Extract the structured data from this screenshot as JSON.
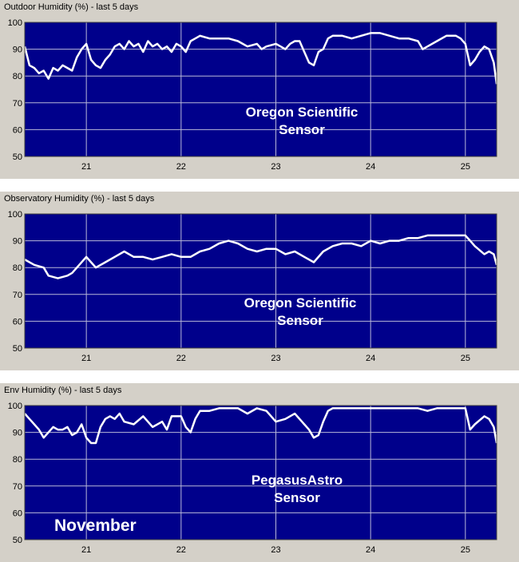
{
  "colors": {
    "panel_bg": "#d4d0c8",
    "plot_bg": "#00008b",
    "line": "#ffffff",
    "grid": "#b8b8d8"
  },
  "month_label": "November",
  "chart_data": [
    {
      "type": "line",
      "title": "Outdoor Humidity (%) - last 5 days",
      "xlabel": "",
      "ylabel": "",
      "xlim": [
        20.35,
        25.33
      ],
      "ylim": [
        50,
        100
      ],
      "x_ticks": [
        "21",
        "22",
        "23",
        "24",
        "25"
      ],
      "y_ticks": [
        "100",
        "90",
        "80",
        "70",
        "60",
        "50"
      ],
      "annotation": [
        "Oregon Scientific",
        "Sensor"
      ],
      "grid": true,
      "series": [
        {
          "x": [
            20.35,
            20.4,
            20.45,
            20.5,
            20.55,
            20.6,
            20.65,
            20.7,
            20.75,
            20.8,
            20.85,
            20.9,
            20.95,
            21.0,
            21.05,
            21.1,
            21.15,
            21.2,
            21.25,
            21.3,
            21.35,
            21.4,
            21.45,
            21.5,
            21.55,
            21.6,
            21.65,
            21.7,
            21.75,
            21.8,
            21.85,
            21.9,
            21.95,
            22.0,
            22.05,
            22.1,
            22.15,
            22.2,
            22.3,
            22.4,
            22.5,
            22.6,
            22.65,
            22.7,
            22.8,
            22.85,
            22.9,
            23.0,
            23.05,
            23.1,
            23.15,
            23.2,
            23.25,
            23.3,
            23.35,
            23.4,
            23.45,
            23.5,
            23.55,
            23.6,
            23.7,
            23.8,
            23.9,
            24.0,
            24.1,
            24.2,
            24.3,
            24.4,
            24.5,
            24.55,
            24.6,
            24.7,
            24.8,
            24.9,
            24.95,
            25.0,
            25.05,
            25.1,
            25.15,
            25.2,
            25.25,
            25.3,
            25.33
          ],
          "y": [
            91,
            84,
            83,
            81,
            82,
            79,
            83,
            82,
            84,
            83,
            82,
            87,
            90,
            92,
            86,
            84,
            83,
            86,
            88,
            91,
            92,
            90,
            93,
            91,
            92,
            89,
            93,
            91,
            92,
            90,
            91,
            89,
            92,
            91,
            89,
            93,
            94,
            95,
            94,
            94,
            94,
            93,
            92,
            91,
            92,
            90,
            91,
            92,
            91,
            90,
            92,
            93,
            93,
            89,
            85,
            84,
            89,
            90,
            94,
            95,
            95,
            94,
            95,
            96,
            96,
            95,
            94,
            94,
            93,
            90,
            91,
            93,
            95,
            95,
            94,
            92,
            84,
            86,
            89,
            91,
            90,
            85,
            77
          ]
        }
      ]
    },
    {
      "type": "line",
      "title": "Observatory Humidity (%) - last 5 days",
      "xlabel": "",
      "ylabel": "",
      "xlim": [
        20.35,
        25.33
      ],
      "ylim": [
        50,
        100
      ],
      "x_ticks": [
        "21",
        "22",
        "23",
        "24",
        "25"
      ],
      "y_ticks": [
        "100",
        "90",
        "80",
        "70",
        "60",
        "50"
      ],
      "annotation": [
        "Oregon Scientific",
        "Sensor"
      ],
      "grid": true,
      "series": [
        {
          "x": [
            20.35,
            20.45,
            20.55,
            20.6,
            20.7,
            20.8,
            20.85,
            20.9,
            21.0,
            21.05,
            21.1,
            21.2,
            21.3,
            21.4,
            21.5,
            21.6,
            21.7,
            21.8,
            21.9,
            22.0,
            22.05,
            22.1,
            22.2,
            22.3,
            22.4,
            22.5,
            22.6,
            22.7,
            22.8,
            22.9,
            23.0,
            23.1,
            23.2,
            23.3,
            23.4,
            23.5,
            23.6,
            23.7,
            23.8,
            23.9,
            24.0,
            24.1,
            24.2,
            24.3,
            24.4,
            24.5,
            24.6,
            24.7,
            24.8,
            24.9,
            25.0,
            25.05,
            25.1,
            25.2,
            25.25,
            25.3,
            25.33
          ],
          "y": [
            83,
            81,
            80,
            77,
            76,
            77,
            78,
            80,
            84,
            82,
            80,
            82,
            84,
            86,
            84,
            84,
            83,
            84,
            85,
            84,
            84,
            84,
            86,
            87,
            89,
            90,
            89,
            87,
            86,
            87,
            87,
            85,
            86,
            84,
            82,
            86,
            88,
            89,
            89,
            88,
            90,
            89,
            90,
            90,
            91,
            91,
            92,
            92,
            92,
            92,
            92,
            90,
            88,
            85,
            86,
            85,
            81
          ]
        }
      ]
    },
    {
      "type": "line",
      "title": "Env Humidity (%) - last 5 days",
      "xlabel": "",
      "ylabel": "",
      "xlim": [
        20.35,
        25.33
      ],
      "ylim": [
        50,
        100
      ],
      "x_ticks": [
        "21",
        "22",
        "23",
        "24",
        "25"
      ],
      "y_ticks": [
        "100",
        "90",
        "80",
        "70",
        "60",
        "50"
      ],
      "annotation": [
        "PegasusAstro",
        "Sensor"
      ],
      "grid": true,
      "series": [
        {
          "x": [
            20.35,
            20.4,
            20.45,
            20.5,
            20.55,
            20.6,
            20.65,
            20.7,
            20.75,
            20.8,
            20.85,
            20.9,
            20.95,
            21.0,
            21.05,
            21.1,
            21.15,
            21.2,
            21.25,
            21.3,
            21.35,
            21.4,
            21.5,
            21.6,
            21.7,
            21.8,
            21.85,
            21.9,
            22.0,
            22.05,
            22.1,
            22.15,
            22.2,
            22.3,
            22.4,
            22.5,
            22.6,
            22.7,
            22.8,
            22.9,
            23.0,
            23.1,
            23.2,
            23.3,
            23.35,
            23.4,
            23.45,
            23.5,
            23.55,
            23.6,
            23.7,
            23.8,
            23.9,
            24.0,
            24.1,
            24.2,
            24.3,
            24.4,
            24.5,
            24.6,
            24.7,
            24.8,
            24.9,
            25.0,
            25.05,
            25.1,
            25.2,
            25.25,
            25.3,
            25.33
          ],
          "y": [
            97,
            95,
            93,
            91,
            88,
            90,
            92,
            91,
            91,
            92,
            89,
            90,
            93,
            88,
            86,
            86,
            92,
            95,
            96,
            95,
            97,
            94,
            93,
            96,
            92,
            94,
            91,
            96,
            96,
            92,
            90,
            95,
            98,
            98,
            99,
            99,
            99,
            97,
            99,
            98,
            94,
            95,
            97,
            93,
            91,
            88,
            89,
            94,
            98,
            99,
            99,
            99,
            99,
            99,
            99,
            99,
            99,
            99,
            99,
            98,
            99,
            99,
            99,
            99,
            91,
            93,
            96,
            95,
            92,
            86
          ]
        }
      ]
    }
  ]
}
